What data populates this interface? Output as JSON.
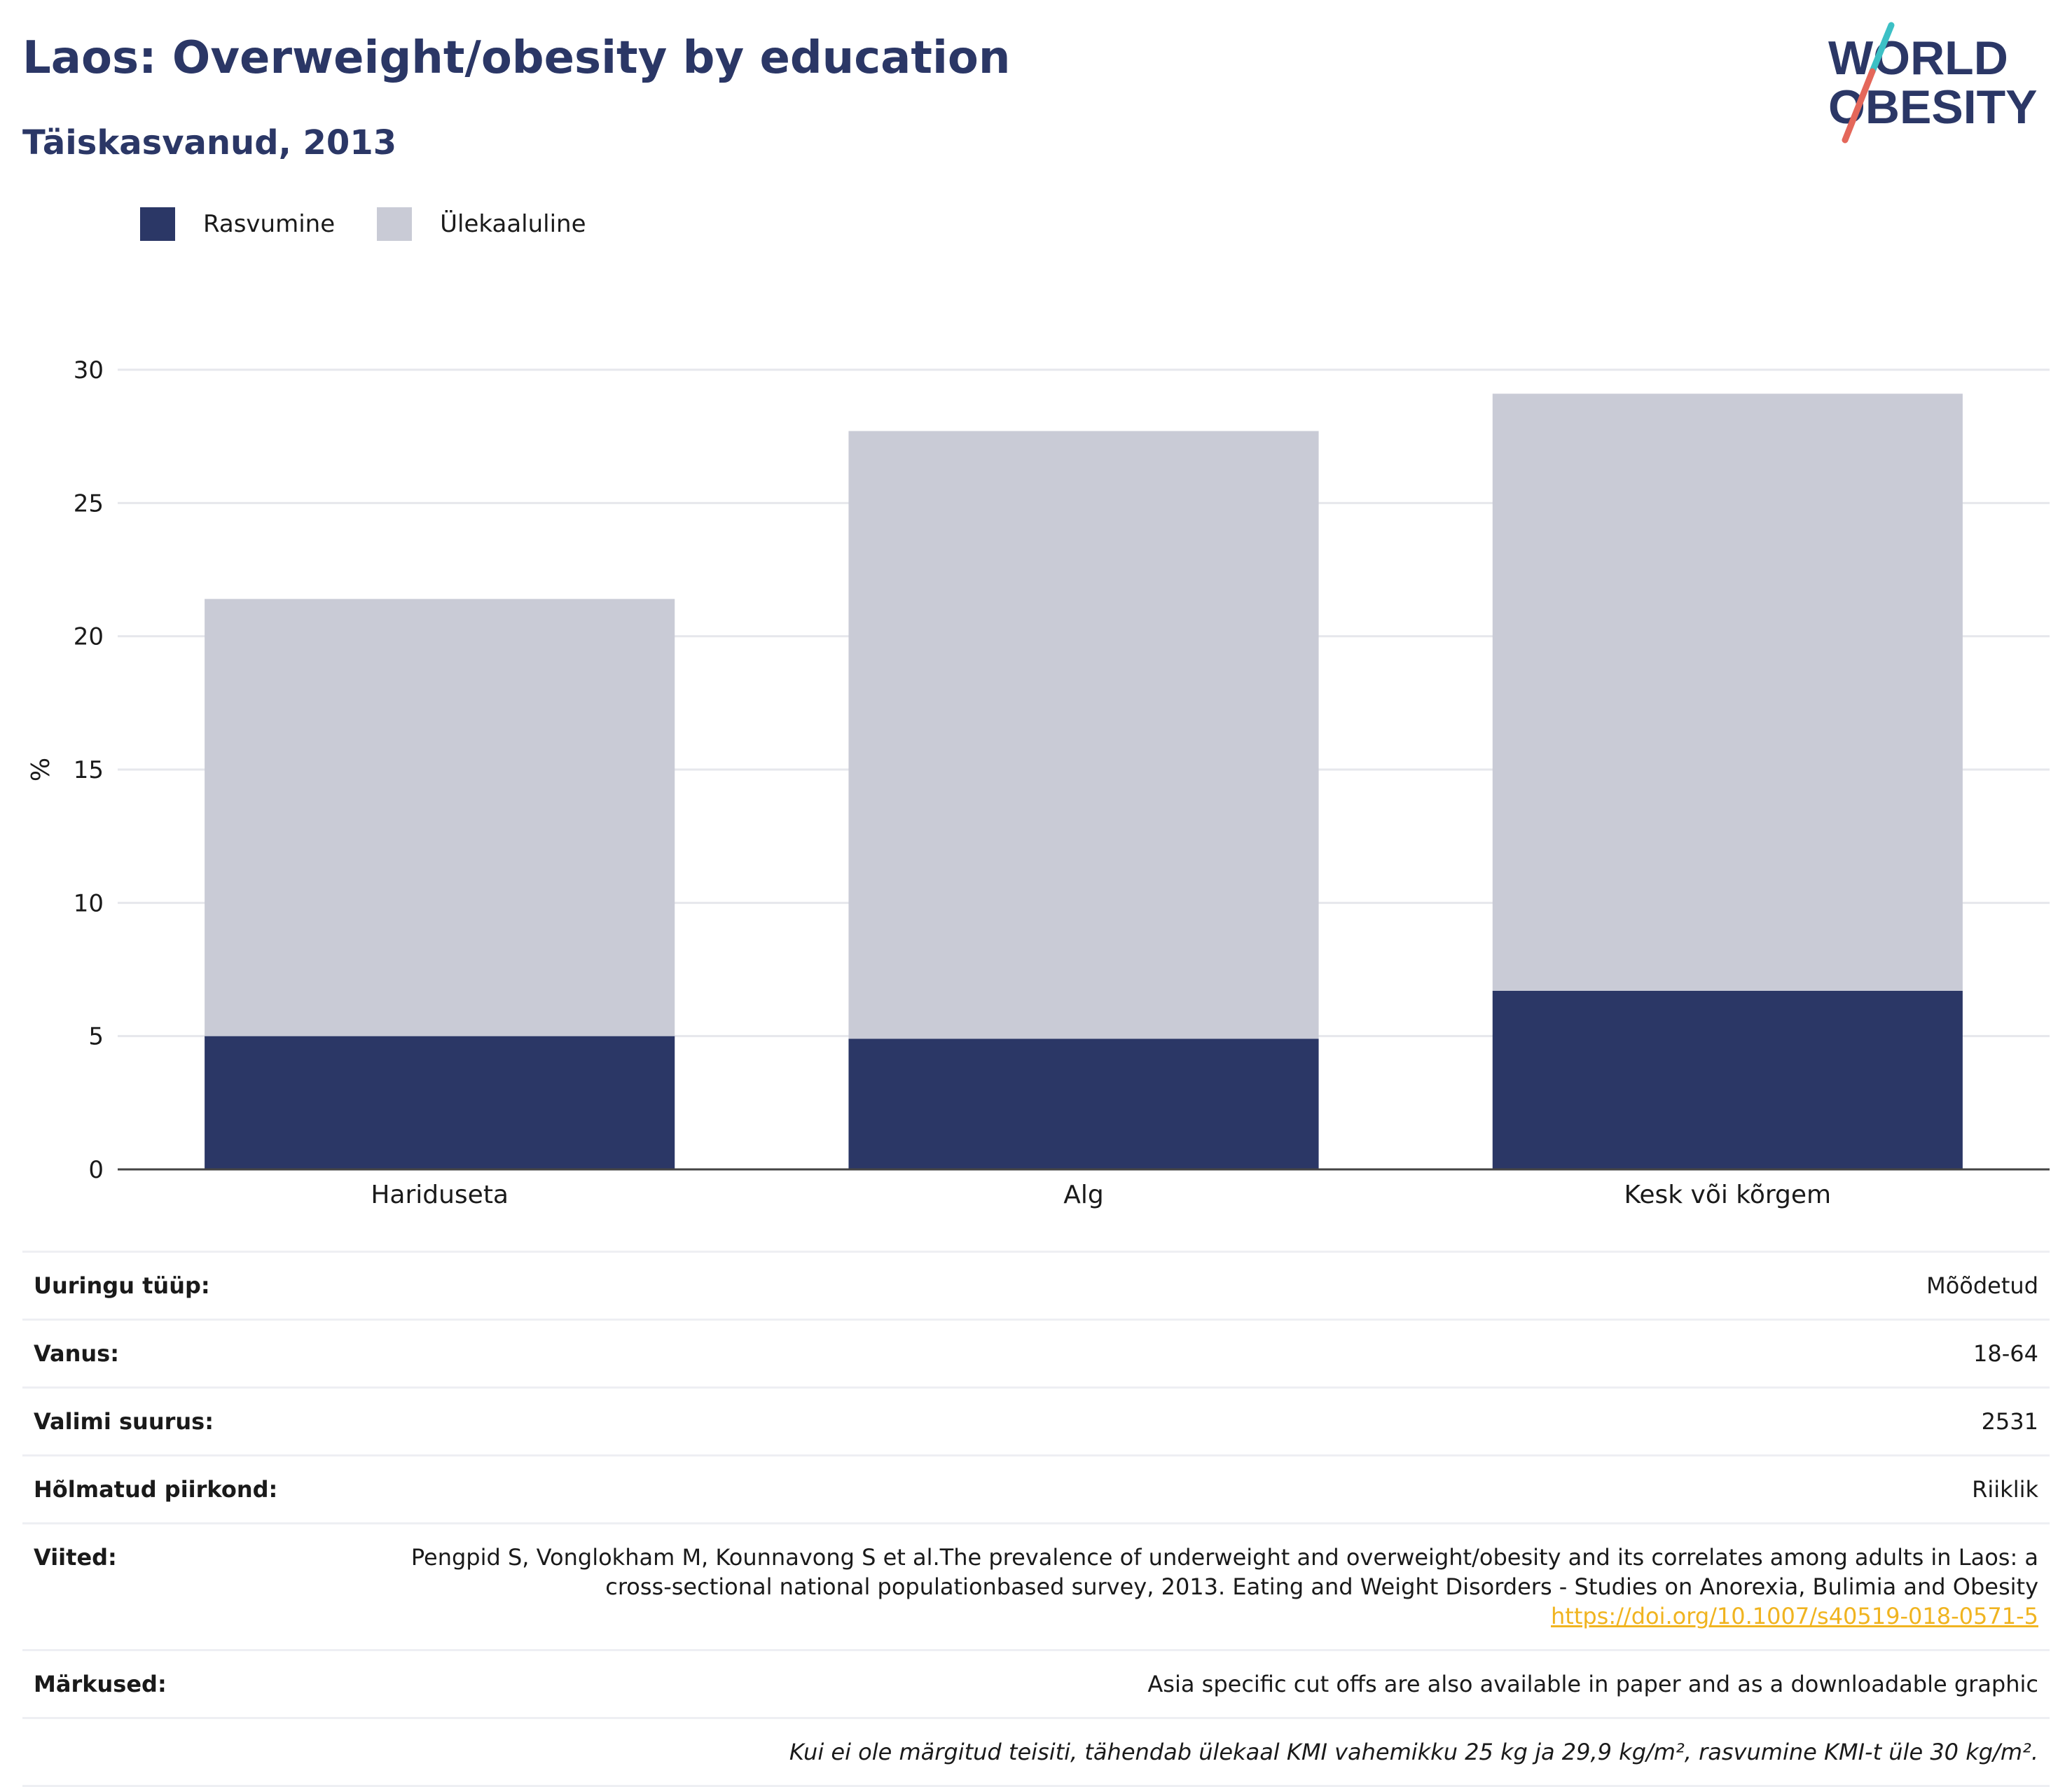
{
  "header": {
    "title": "Laos: Overweight/obesity by education",
    "subtitle": "Täiskasvanud, 2013",
    "logo_line1": "WORLD",
    "logo_line2": "OBESITY"
  },
  "legend": [
    {
      "label": "Rasvumine",
      "color": "#2b3766"
    },
    {
      "label": "Ülekaaluline",
      "color": "#c9cbd6"
    }
  ],
  "chart_data": {
    "type": "bar",
    "stacked": true,
    "categories": [
      "Hariduseta",
      "Alg",
      "Kesk või kõrgem"
    ],
    "series": [
      {
        "name": "Rasvumine",
        "values": [
          5.0,
          4.9,
          6.7
        ],
        "color": "#2b3766"
      },
      {
        "name": "Ülekaaluline",
        "values": [
          16.4,
          22.8,
          22.4
        ],
        "color": "#c9cbd6"
      }
    ],
    "ylabel": "%",
    "ylim": [
      0,
      30
    ],
    "yticks": [
      0,
      5,
      10,
      15,
      20,
      25,
      30
    ],
    "grid": true
  },
  "meta": {
    "rows": [
      {
        "key": "Uuringu tüüp:",
        "value": "Mõõdetud"
      },
      {
        "key": "Vanus:",
        "value": "18-64"
      },
      {
        "key": "Valimi suurus:",
        "value": "2531"
      },
      {
        "key": "Hõlmatud piirkond:",
        "value": "Riiklik"
      }
    ],
    "references_key": "Viited:",
    "references_text": "Pengpid S, Vonglokham M, Kounnavong S et al.The prevalence of underweight and overweight/obesity and its correlates among adults in Laos: a cross-sectional national populationbased survey, 2013. Eating and Weight Disorders - Studies on Anorexia, Bulimia and Obesity",
    "references_link": "https://doi.org/10.1007/s40519-018-0571-5",
    "notes_key": "Märkused:",
    "notes_value": "Asia specific cut offs are also available in paper and as a downloadable graphic",
    "footnote": "Kui ei ole märgitud teisiti, tähendab ülekaal KMI vahemikku 25 kg ja 29,9 kg/m², rasvumine KMI-t üle 30 kg/m²."
  }
}
